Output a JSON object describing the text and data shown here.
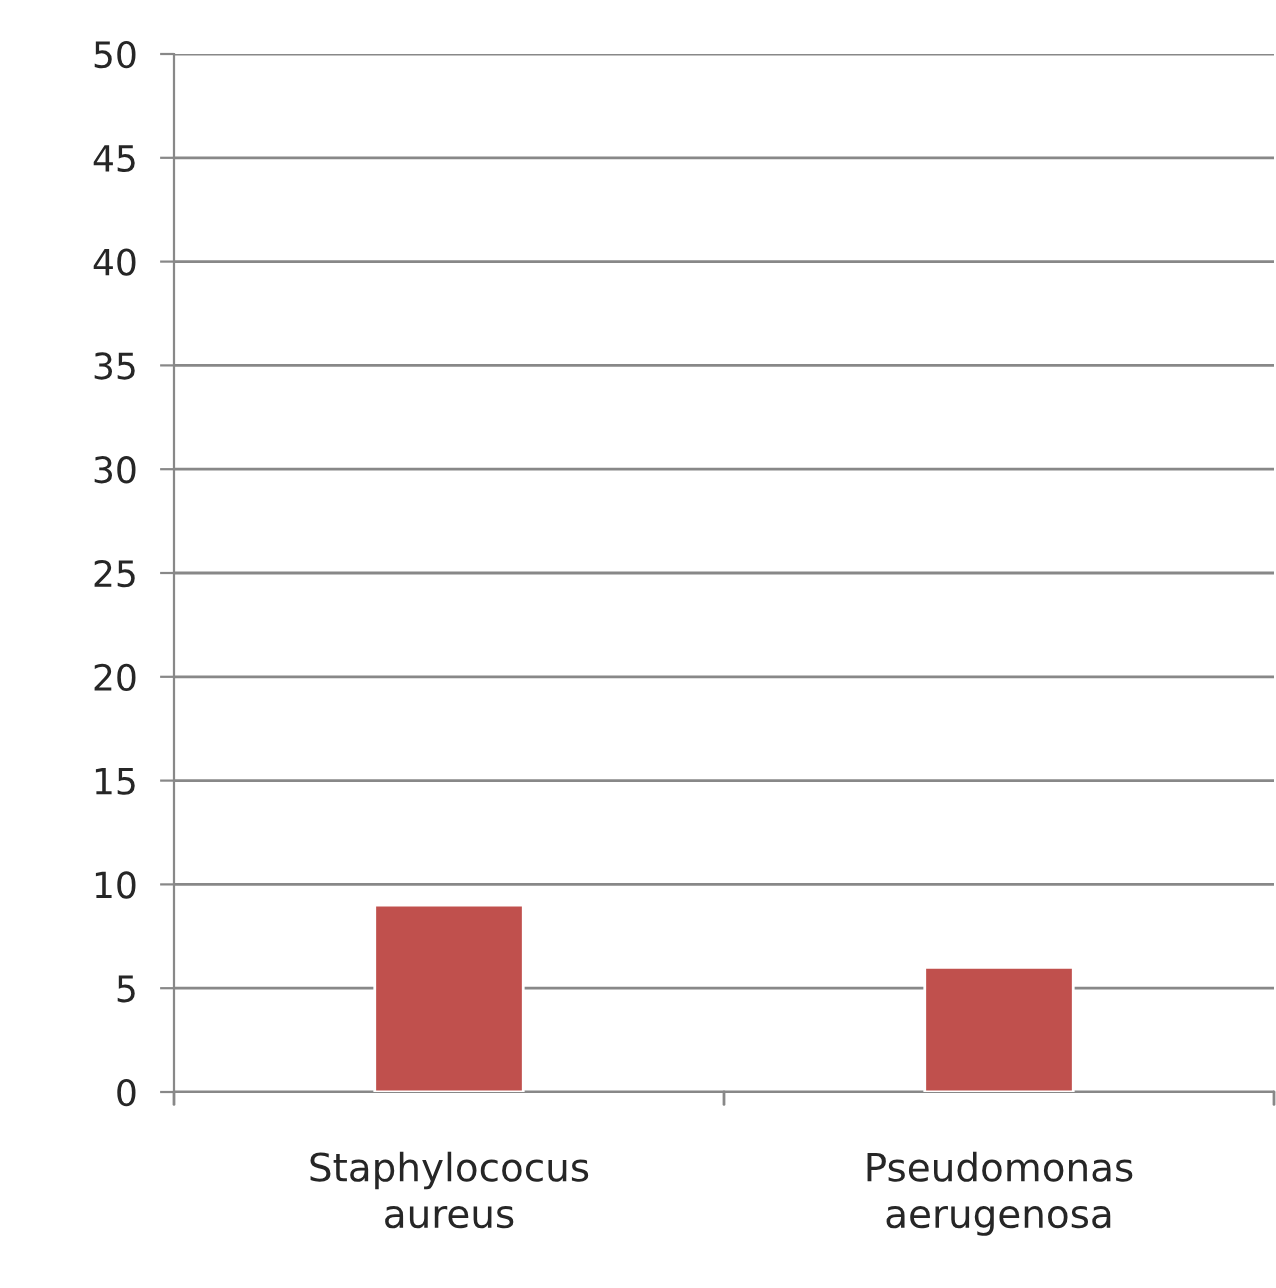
{
  "chart_data": {
    "type": "bar",
    "categories": [
      "Staphylococus aureus",
      "Pseudomonas aerugenosa"
    ],
    "values": [
      9,
      6
    ],
    "color": "#c0504d",
    "ylim": [
      0,
      50
    ],
    "yticks": [
      0,
      5,
      10,
      15,
      20,
      25,
      30,
      35,
      40,
      45,
      50
    ],
    "grid": "y"
  }
}
